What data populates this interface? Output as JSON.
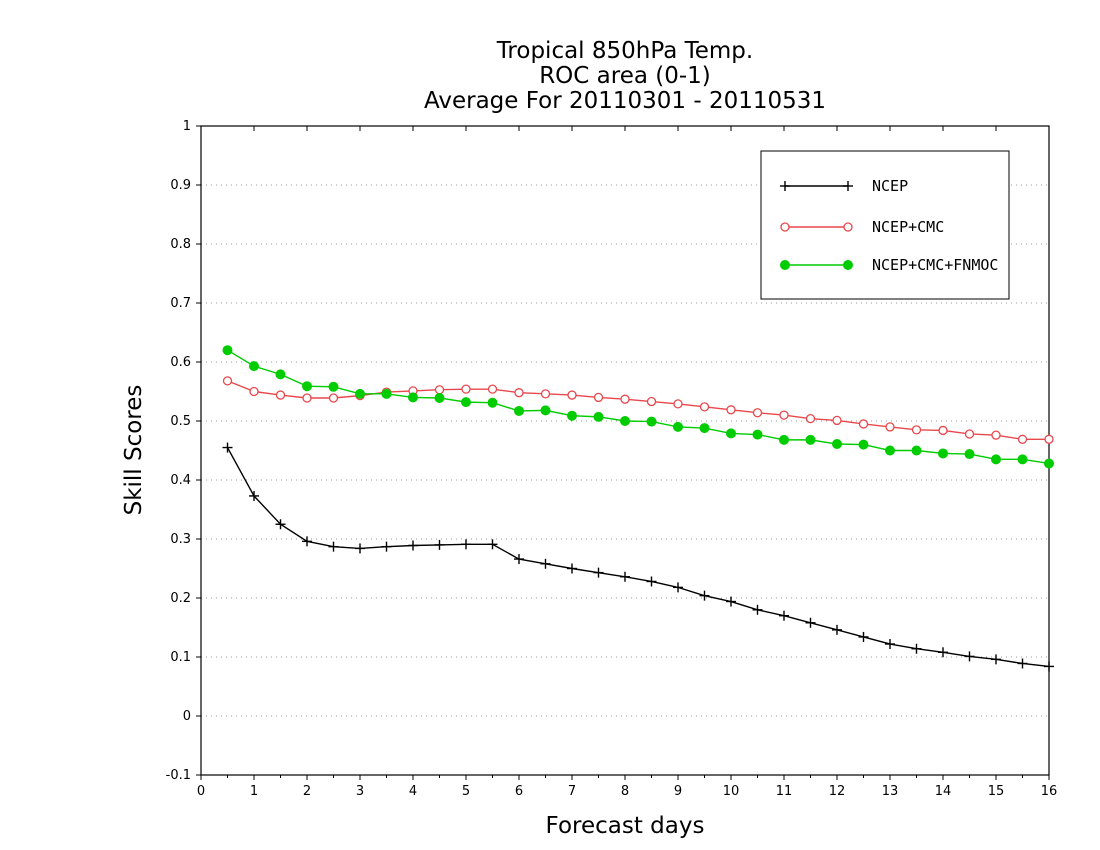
{
  "chart_data": {
    "type": "line",
    "title": [
      "Tropical 850hPa Temp.",
      "ROC area (0-1)",
      "Average For 20110301 - 20110531"
    ],
    "xlabel": "Forecast days",
    "ylabel": "Skill Scores",
    "xlim": [
      0,
      16
    ],
    "ylim": [
      -0.1,
      1
    ],
    "xticks": [
      "0",
      "1",
      "2",
      "3",
      "4",
      "5",
      "6",
      "7",
      "8",
      "9",
      "10",
      "11",
      "12",
      "13",
      "14",
      "15",
      "16"
    ],
    "yticks": [
      "-0.1",
      "0",
      "0.1",
      "0.2",
      "0.3",
      "0.4",
      "0.5",
      "0.6",
      "0.7",
      "0.8",
      "0.9",
      "1"
    ],
    "grid": true,
    "legend_position": "top-right",
    "x": [
      0.5,
      1,
      1.5,
      2,
      2.5,
      3,
      3.5,
      4,
      4.5,
      5,
      5.5,
      6,
      6.5,
      7,
      7.5,
      8,
      8.5,
      9,
      9.5,
      10,
      10.5,
      11,
      11.5,
      12,
      12.5,
      13,
      13.5,
      14,
      14.5,
      15,
      15.5,
      16
    ],
    "series": [
      {
        "name": "NCEP",
        "color": "#000000",
        "marker": "plus",
        "values": [
          0.455,
          0.373,
          0.325,
          0.296,
          0.287,
          0.284,
          0.287,
          0.289,
          0.29,
          0.291,
          0.291,
          0.266,
          0.258,
          0.25,
          0.243,
          0.236,
          0.228,
          0.218,
          0.204,
          0.194,
          0.18,
          0.17,
          0.158,
          0.146,
          0.134,
          0.122,
          0.114,
          0.108,
          0.101,
          0.096,
          0.089,
          0.084
        ]
      },
      {
        "name": "NCEP+CMC",
        "color": "#e8474c",
        "marker": "open-circle",
        "values": [
          0.568,
          0.55,
          0.544,
          0.539,
          0.539,
          0.543,
          0.549,
          0.551,
          0.553,
          0.554,
          0.554,
          0.548,
          0.546,
          0.544,
          0.54,
          0.537,
          0.533,
          0.529,
          0.524,
          0.519,
          0.514,
          0.51,
          0.504,
          0.501,
          0.495,
          0.49,
          0.485,
          0.484,
          0.478,
          0.476,
          0.469,
          0.469
        ]
      },
      {
        "name": "NCEP+CMC+FNMOC",
        "color": "#00cc00",
        "marker": "filled-circle",
        "values": [
          0.62,
          0.593,
          0.579,
          0.559,
          0.558,
          0.546,
          0.546,
          0.54,
          0.539,
          0.532,
          0.531,
          0.517,
          0.518,
          0.509,
          0.507,
          0.5,
          0.499,
          0.49,
          0.488,
          0.479,
          0.477,
          0.468,
          0.468,
          0.461,
          0.46,
          0.45,
          0.45,
          0.445,
          0.444,
          0.435,
          0.435,
          0.428
        ]
      }
    ]
  }
}
